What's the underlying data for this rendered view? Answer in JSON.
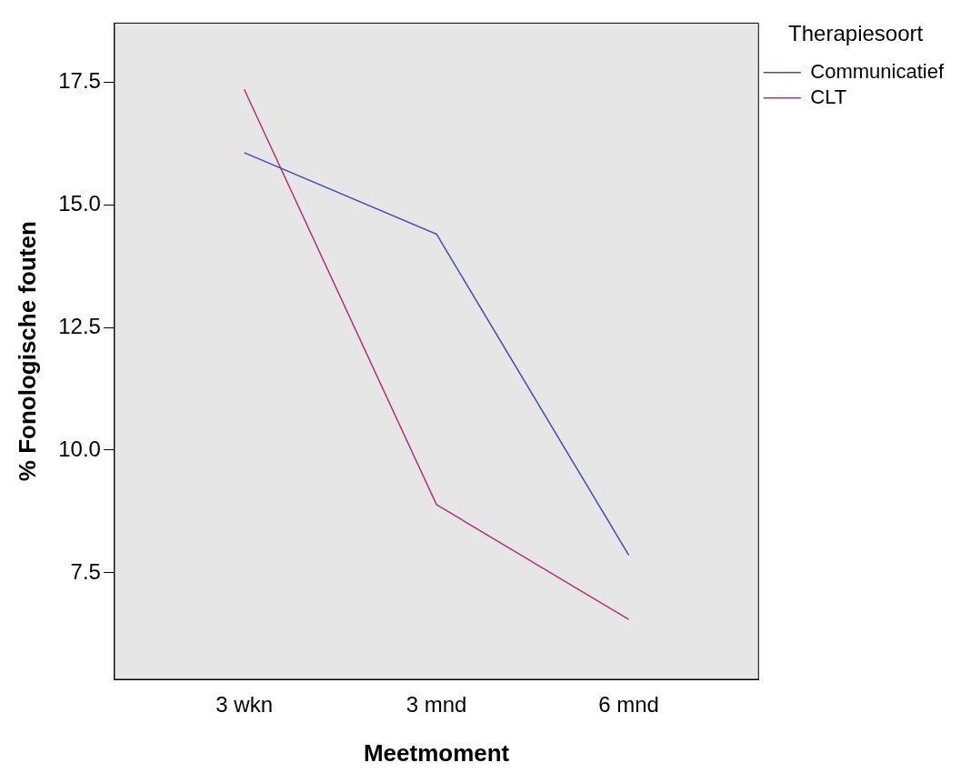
{
  "chart_data": {
    "type": "line",
    "xlabel": "Meetmoment",
    "ylabel": "% Fonologische fouten",
    "legend_title": "Therapiesoort",
    "categories": [
      "3 wkn",
      "3 mnd",
      "6 mnd"
    ],
    "series": [
      {
        "name": "Communicatief",
        "color": "#3f4fb4",
        "values": [
          16.06,
          14.4,
          7.86
        ]
      },
      {
        "name": "CLT",
        "color": "#b5307a",
        "values": [
          17.35,
          8.89,
          6.55
        ]
      }
    ],
    "ylim": [
      5.33,
      18.7
    ],
    "yticks": [
      {
        "value": 7.5,
        "label": "7.5"
      },
      {
        "value": 10,
        "label": "10.0"
      },
      {
        "value": 12.5,
        "label": "12.5"
      },
      {
        "value": 15,
        "label": "15.0"
      },
      {
        "value": 17.5,
        "label": "17.5"
      }
    ],
    "grid": false,
    "legend": "top right",
    "marker": "none",
    "line_style": "solid"
  }
}
